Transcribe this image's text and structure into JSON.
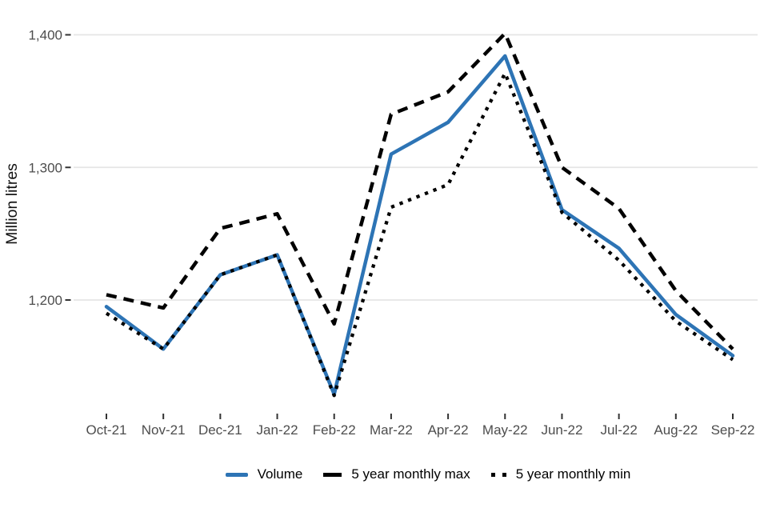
{
  "chart_data": {
    "type": "line",
    "title": "",
    "xlabel": "",
    "ylabel": "Million litres",
    "categories": [
      "Oct-21",
      "Nov-21",
      "Dec-21",
      "Jan-22",
      "Feb-22",
      "Mar-22",
      "Apr-22",
      "May-22",
      "Jun-22",
      "Jul-22",
      "Aug-22",
      "Sep-22"
    ],
    "series": [
      {
        "name": "Volume",
        "color": "#2d74b5",
        "style": "solid",
        "values": [
          1195,
          1163,
          1219,
          1234,
          1129,
          1310,
          1334,
          1384,
          1268,
          1239,
          1189,
          1158
        ]
      },
      {
        "name": "5 year monthly max",
        "color": "#000000",
        "style": "dashed",
        "values": [
          1204,
          1194,
          1254,
          1265,
          1182,
          1340,
          1357,
          1401,
          1300,
          1269,
          1207,
          1163
        ]
      },
      {
        "name": "5 year monthly min",
        "color": "#000000",
        "style": "dotted",
        "values": [
          1190,
          1163,
          1219,
          1234,
          1128,
          1270,
          1287,
          1371,
          1266,
          1230,
          1184,
          1155
        ]
      }
    ],
    "y_ticks": [
      {
        "value": 1200,
        "label": "1,200"
      },
      {
        "value": 1300,
        "label": "1,300"
      },
      {
        "value": 1400,
        "label": "1,400"
      }
    ],
    "ylim": [
      1114,
      1426
    ],
    "grid": "horizontal-only",
    "legend_position": "bottom"
  },
  "colors": {
    "volume_line": "#2d74b5",
    "minmax_line": "#000000",
    "gridline": "#e5e5e5",
    "tick_mark": "#333333",
    "tick_label": "#4d4d4d",
    "axis_title": "#111111",
    "background": "#ffffff"
  }
}
